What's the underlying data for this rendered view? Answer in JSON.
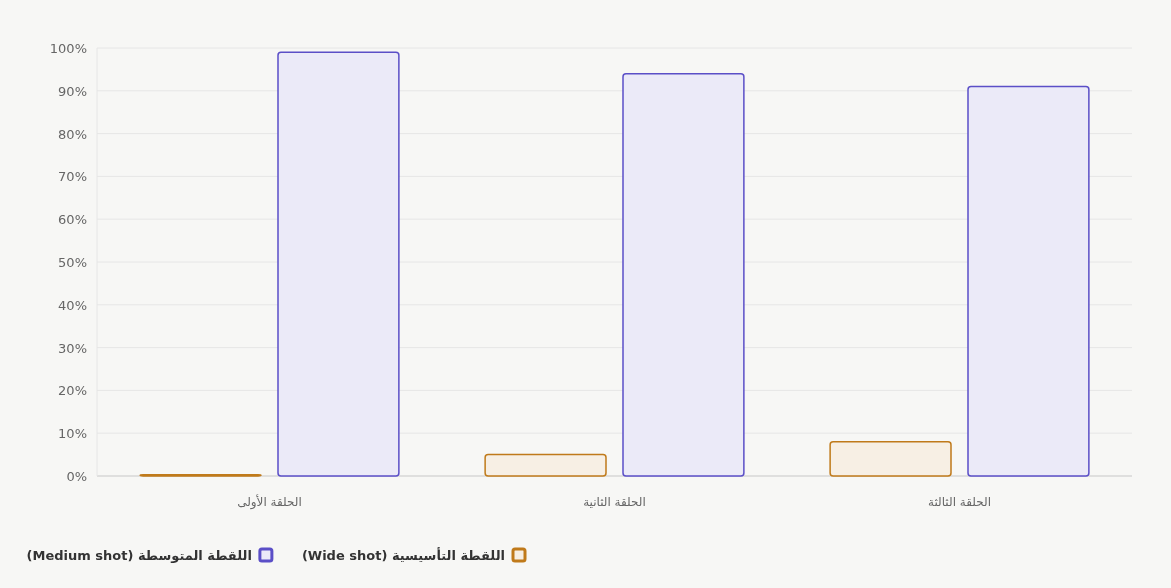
{
  "chart_data": {
    "type": "bar",
    "categories": [
      "الحلقة الأولى",
      "الحلقة الثانية",
      "الحلقة الثالثة"
    ],
    "series": [
      {
        "name": "اللقطة التأسيسية (Wide shot)",
        "color": "#c07a1a",
        "values": [
          0.3,
          5,
          8
        ]
      },
      {
        "name": "اللقطة المتوسطة (Medium shot)",
        "color": "#5b4fc7",
        "values": [
          99,
          94,
          91
        ]
      }
    ],
    "ylim": [
      0,
      100
    ],
    "yticks": [
      {
        "value": 0,
        "label": "0%"
      },
      {
        "value": 10,
        "label": "10%"
      },
      {
        "value": 20,
        "label": "20%"
      },
      {
        "value": 30,
        "label": "30%"
      },
      {
        "value": 40,
        "label": "40%"
      },
      {
        "value": 50,
        "label": "50%"
      },
      {
        "value": 60,
        "label": "60%"
      },
      {
        "value": 70,
        "label": "70%"
      },
      {
        "value": 80,
        "label": "80%"
      },
      {
        "value": 90,
        "label": "90%"
      },
      {
        "value": 100,
        "label": "100%"
      }
    ],
    "grid": "y",
    "legend": "bottom left"
  }
}
